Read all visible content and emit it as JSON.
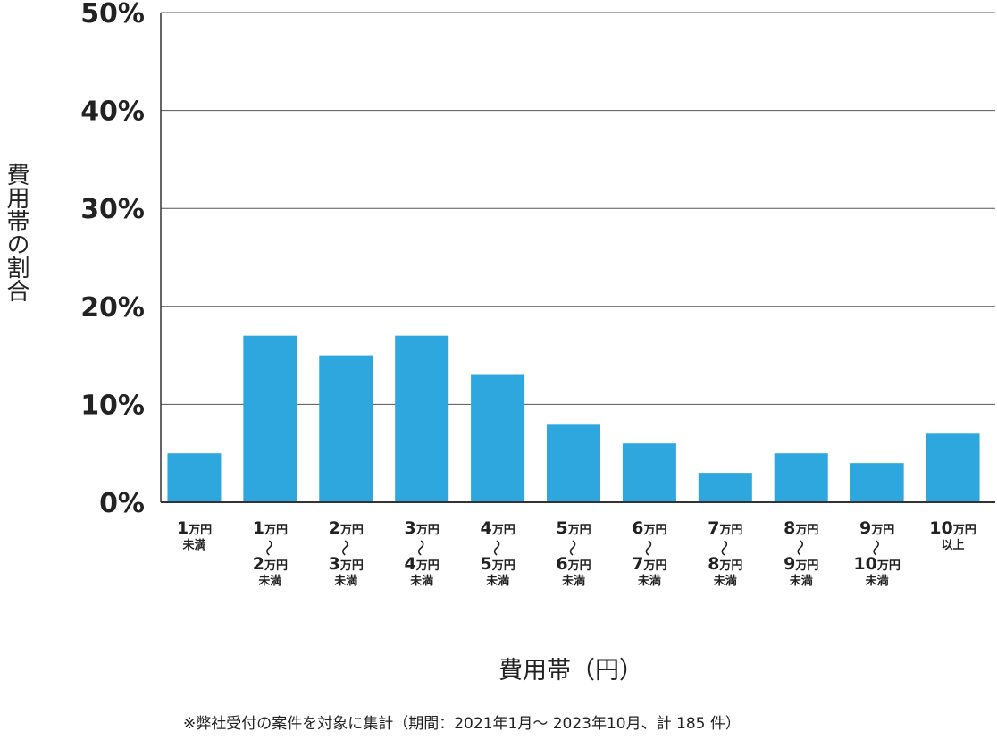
{
  "chart_data": {
    "type": "bar",
    "title": "",
    "ylabel": "費用帯の割合",
    "xlabel": "費用帯（円）",
    "ylim": [
      0,
      50
    ],
    "yticks": [
      "0%",
      "10%",
      "20%",
      "30%",
      "40%",
      "50%"
    ],
    "grid": true,
    "bar_color": "#2ea7de",
    "categories": [
      {
        "lines": [
          [
            "1",
            "万円"
          ],
          [
            "",
            "未満"
          ]
        ]
      },
      {
        "lines": [
          [
            "1",
            "万円"
          ],
          [
            "~",
            ""
          ],
          [
            "2",
            "万円"
          ],
          [
            "",
            "未満"
          ]
        ]
      },
      {
        "lines": [
          [
            "2",
            "万円"
          ],
          [
            "~",
            ""
          ],
          [
            "3",
            "万円"
          ],
          [
            "",
            "未満"
          ]
        ]
      },
      {
        "lines": [
          [
            "3",
            "万円"
          ],
          [
            "~",
            ""
          ],
          [
            "4",
            "万円"
          ],
          [
            "",
            "未満"
          ]
        ]
      },
      {
        "lines": [
          [
            "4",
            "万円"
          ],
          [
            "~",
            ""
          ],
          [
            "5",
            "万円"
          ],
          [
            "",
            "未満"
          ]
        ]
      },
      {
        "lines": [
          [
            "5",
            "万円"
          ],
          [
            "~",
            ""
          ],
          [
            "6",
            "万円"
          ],
          [
            "",
            "未満"
          ]
        ]
      },
      {
        "lines": [
          [
            "6",
            "万円"
          ],
          [
            "~",
            ""
          ],
          [
            "7",
            "万円"
          ],
          [
            "",
            "未満"
          ]
        ]
      },
      {
        "lines": [
          [
            "7",
            "万円"
          ],
          [
            "~",
            ""
          ],
          [
            "8",
            "万円"
          ],
          [
            "",
            "未満"
          ]
        ]
      },
      {
        "lines": [
          [
            "8",
            "万円"
          ],
          [
            "~",
            ""
          ],
          [
            "9",
            "万円"
          ],
          [
            "",
            "未満"
          ]
        ]
      },
      {
        "lines": [
          [
            "9",
            "万円"
          ],
          [
            "~",
            ""
          ],
          [
            "10",
            "万円"
          ],
          [
            "",
            "未満"
          ]
        ]
      },
      {
        "lines": [
          [
            "10",
            "万円"
          ],
          [
            "",
            "以上"
          ]
        ]
      }
    ],
    "values": [
      5,
      17,
      15,
      17,
      13,
      8,
      6,
      3,
      5,
      4,
      7
    ]
  },
  "footnote": "※弊社受付の案件を対象に集計（期間：2021年1月～ 2023年10月、計 185 件）"
}
